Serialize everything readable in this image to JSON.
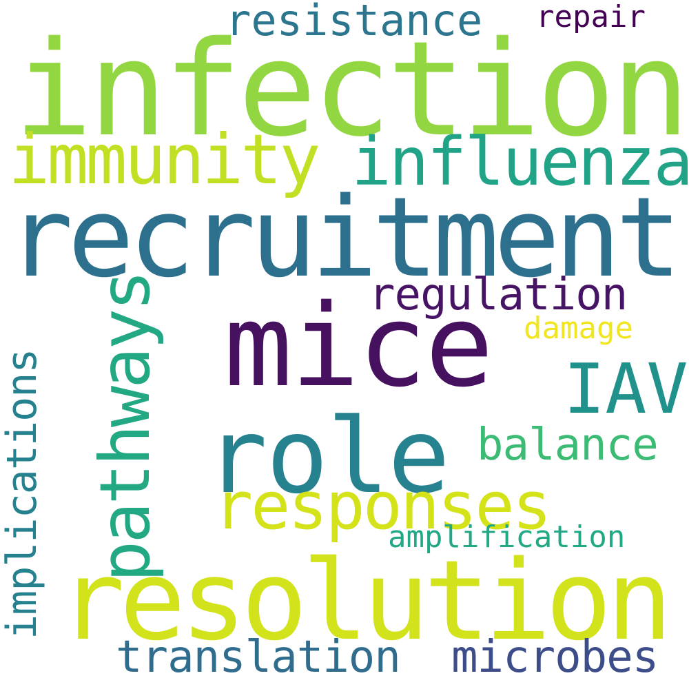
{
  "words": {
    "infection": {
      "text": "infection",
      "color": "#92d741"
    },
    "recruitment": {
      "text": "recruitment",
      "color": "#2d708e"
    },
    "mice": {
      "text": "mice",
      "color": "#46125f"
    },
    "resolution": {
      "text": "resolution",
      "color": "#d2e21b"
    },
    "role": {
      "text": "role",
      "color": "#26828e"
    },
    "immunity": {
      "text": "immunity",
      "color": "#c2df23"
    },
    "influenza": {
      "text": "influenza",
      "color": "#20a386"
    },
    "iav": {
      "text": "IAV",
      "color": "#21918c"
    },
    "responses": {
      "text": "responses",
      "color": "#d4e21a"
    },
    "pathways": {
      "text": "pathways",
      "color": "#23a884"
    },
    "implications": {
      "text": "implications",
      "color": "#26818e"
    },
    "balance": {
      "text": "balance",
      "color": "#3cbb75"
    },
    "regulation": {
      "text": "regulation",
      "color": "#471365"
    },
    "resistance": {
      "text": "resistance",
      "color": "#2b758e"
    },
    "translation": {
      "text": "translation",
      "color": "#2f6c8e"
    },
    "microbes": {
      "text": "microbes",
      "color": "#3d4d8a"
    },
    "amplification": {
      "text": "amplification",
      "color": "#22a884"
    },
    "damage": {
      "text": "damage",
      "color": "#f0e51f"
    },
    "repair": {
      "text": "repair",
      "color": "#440154"
    }
  }
}
